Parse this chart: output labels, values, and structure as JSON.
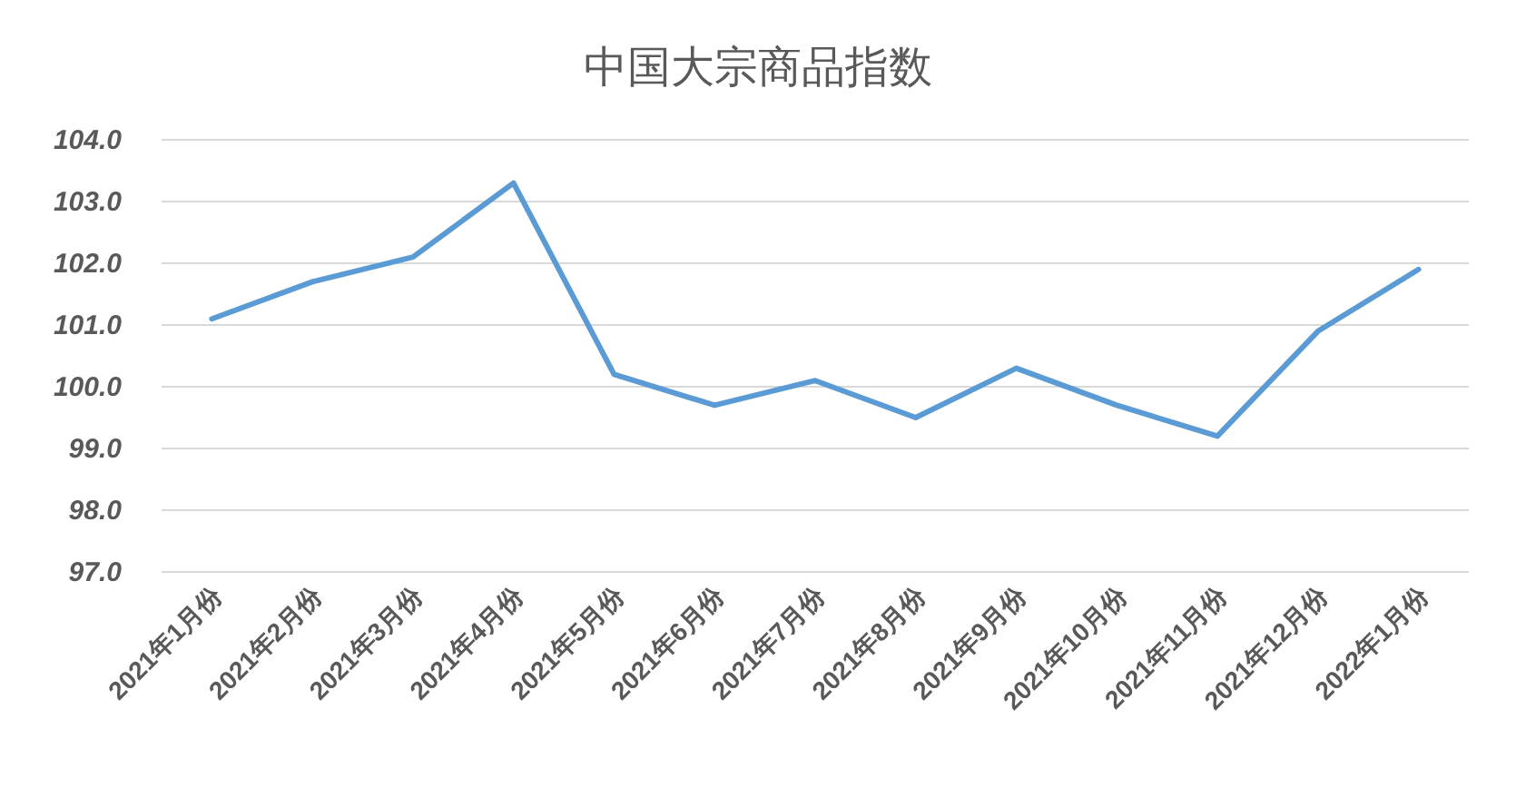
{
  "chart_data": {
    "type": "line",
    "title": "中国大宗商品指数",
    "categories": [
      "2021年1月份",
      "2021年2月份",
      "2021年3月份",
      "2021年4月份",
      "2021年5月份",
      "2021年6月份",
      "2021年7月份",
      "2021年8月份",
      "2021年9月份",
      "2021年10月份",
      "2021年11月份",
      "2021年12月份",
      "2022年1月份"
    ],
    "series": [
      {
        "color": "#5b9bd5",
        "values": [
          101.1,
          101.7,
          102.1,
          103.3,
          100.2,
          99.7,
          100.1,
          99.5,
          100.3,
          99.7,
          99.2,
          100.9,
          101.9
        ]
      }
    ],
    "ylim": [
      97,
      104
    ],
    "yticks": [
      {
        "value": 97,
        "label": "97.0"
      },
      {
        "value": 98,
        "label": "98.0"
      },
      {
        "value": 99,
        "label": "99.0"
      },
      {
        "value": 100,
        "label": "100.0"
      },
      {
        "value": 101,
        "label": "101.0"
      },
      {
        "value": 102,
        "label": "102.0"
      },
      {
        "value": 103,
        "label": "103.0"
      },
      {
        "value": 104,
        "label": "104.0"
      }
    ],
    "grid": "y",
    "marker": "none",
    "line_style": "solid"
  }
}
